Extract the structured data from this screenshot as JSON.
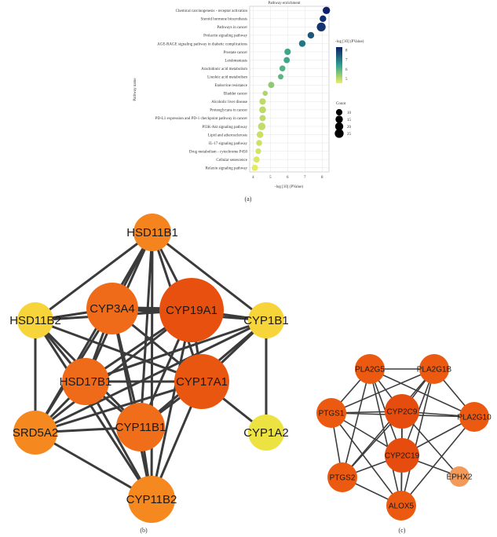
{
  "chart_data": [
    {
      "type": "scatter",
      "title": "Pathway enrichment",
      "xlabel": "-log [10] (PValue)",
      "ylabel": "Pathway name",
      "xlim": [
        3.8,
        8.4
      ],
      "x_ticks": [
        "4",
        "5",
        "6",
        "7",
        "8"
      ],
      "grid": true,
      "legend_color_title": "-log [10] (PValue)",
      "legend_color_ticks": [
        "8",
        "7",
        "6",
        "5"
      ],
      "legend_size_title": "Count",
      "legend_size_ticks": [
        "10",
        "15",
        "20",
        "25"
      ],
      "colors": {
        "low": "#ecef5c",
        "mid": "#2fa08f",
        "high": "#0d1f6b"
      },
      "points": [
        {
          "label": "Chemical carcinogenesis - receptor activation",
          "x": 8.25,
          "count": 15
        },
        {
          "label": "Steroid hormone biosynthesis",
          "x": 8.05,
          "count": 11
        },
        {
          "label": "Pathways in cancer",
          "x": 7.95,
          "count": 25
        },
        {
          "label": "Prolactin signaling pathway",
          "x": 7.35,
          "count": 11
        },
        {
          "label": "AGE-RAGE signaling pathway in diabetic complications",
          "x": 6.85,
          "count": 11
        },
        {
          "label": "Prostate cancer",
          "x": 6.0,
          "count": 10
        },
        {
          "label": "Leishmaniasis",
          "x": 5.95,
          "count": 9
        },
        {
          "label": "Arachidonic acid metabolism",
          "x": 5.7,
          "count": 8
        },
        {
          "label": "Linoleic acid metabolism",
          "x": 5.6,
          "count": 6
        },
        {
          "label": "Endocrine resistance",
          "x": 5.05,
          "count": 9
        },
        {
          "label": "Bladder cancer",
          "x": 4.7,
          "count": 5
        },
        {
          "label": "Alcoholic liver disease",
          "x": 4.55,
          "count": 10
        },
        {
          "label": "Proteoglycans in cancer",
          "x": 4.55,
          "count": 12
        },
        {
          "label": "PD-L1 expression and PD-1 checkpoint pathway in cancer",
          "x": 4.55,
          "count": 9
        },
        {
          "label": "PI3K-Akt signaling pathway",
          "x": 4.5,
          "count": 16
        },
        {
          "label": "Lipid and atherosclerosis",
          "x": 4.4,
          "count": 11
        },
        {
          "label": "IL-17 signaling pathway",
          "x": 4.35,
          "count": 8
        },
        {
          "label": "Drug metabolism - cytochrome P450",
          "x": 4.3,
          "count": 7
        },
        {
          "label": "Cellular senescence",
          "x": 4.2,
          "count": 9
        },
        {
          "label": "Relaxin signaling pathway",
          "x": 4.1,
          "count": 9
        }
      ]
    },
    {
      "type": "network",
      "nodes": [
        {
          "label": "HSD11B1",
          "color": "#f5841f"
        },
        {
          "label": "HSD11B2",
          "color": "#f7d43a"
        },
        {
          "label": "CYP3A4",
          "color": "#ef6b1a"
        },
        {
          "label": "CYP19A1",
          "color": "#e8500f"
        },
        {
          "label": "CYP1B1",
          "color": "#f7d43a"
        },
        {
          "label": "HSD17B1",
          "color": "#ef6b1a"
        },
        {
          "label": "CYP17A1",
          "color": "#e9560f"
        },
        {
          "label": "SRD5A2",
          "color": "#f5891f"
        },
        {
          "label": "CYP11B1",
          "color": "#f06e1a"
        },
        {
          "label": "CYP1A2",
          "color": "#ece343"
        },
        {
          "label": "CYP11B2",
          "color": "#f5891f"
        }
      ]
    },
    {
      "type": "network",
      "nodes": [
        {
          "label": "PLA2G5",
          "color": "#eb5a10"
        },
        {
          "label": "PLA2G1B",
          "color": "#eb5a10"
        },
        {
          "label": "PTGS1",
          "color": "#eb5a10"
        },
        {
          "label": "CYP2C9",
          "color": "#e54c0d"
        },
        {
          "label": "PLA2G10",
          "color": "#eb5a10"
        },
        {
          "label": "CYP2C19",
          "color": "#e54c0d"
        },
        {
          "label": "PTGS2",
          "color": "#eb5a10"
        },
        {
          "label": "EPHX2",
          "color": "#f39a5a"
        },
        {
          "label": "ALOX5",
          "color": "#eb5a10"
        }
      ]
    }
  ],
  "captions": {
    "a": "(a)",
    "b": "(b)",
    "c": "(c)"
  }
}
